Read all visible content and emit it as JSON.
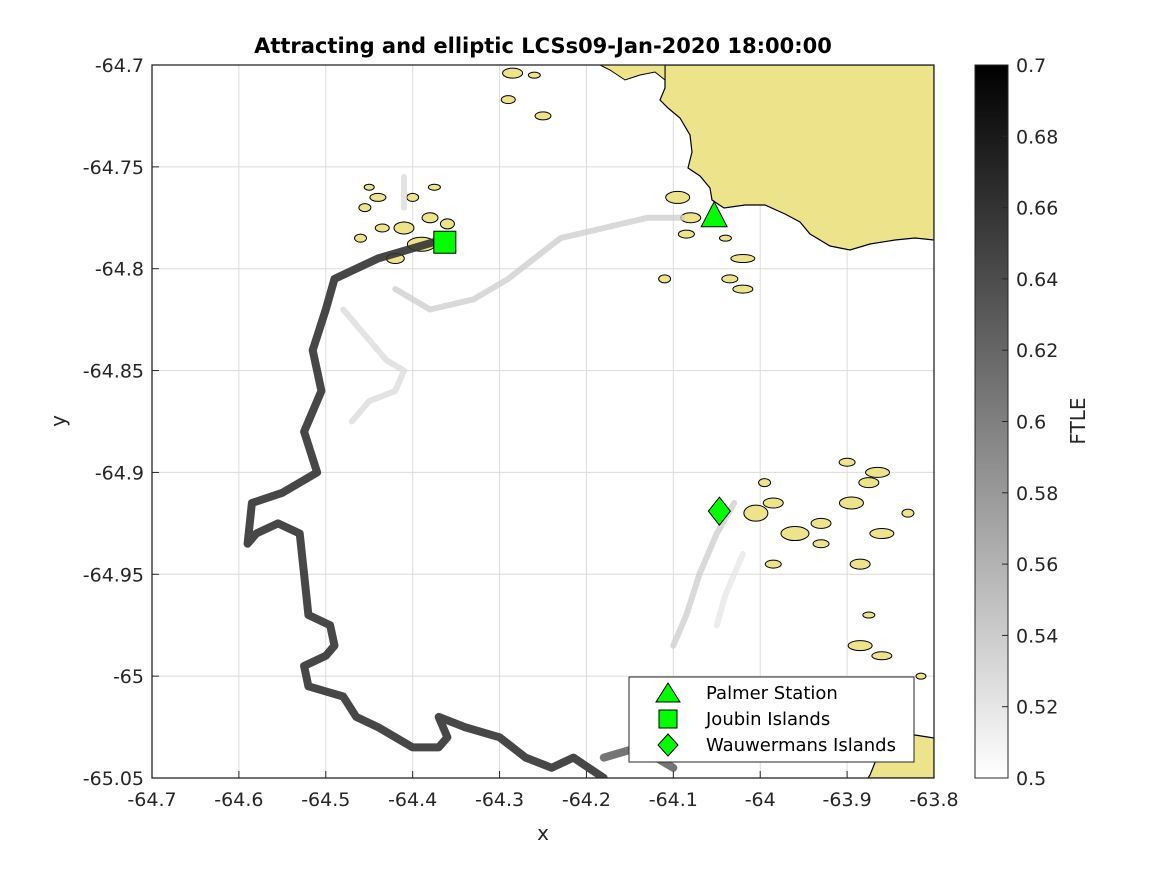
{
  "chart_data": {
    "type": "heatmap",
    "title": "Attracting and elliptic LCSs09-Jan-2020 18:00:00",
    "xlabel": "x",
    "ylabel": "y",
    "xlim": [
      -64.7,
      -63.8
    ],
    "ylim": [
      -65.05,
      -64.7
    ],
    "xticks": [
      "-64.7",
      "-64.6",
      "-64.5",
      "-64.4",
      "-64.3",
      "-64.2",
      "-64.1",
      "-64",
      "-63.9",
      "-63.8"
    ],
    "yticks": [
      "-64.7",
      "-64.75",
      "-64.8",
      "-64.85",
      "-64.9",
      "-64.95",
      "-65",
      "-65.05"
    ],
    "grid": true,
    "colorbar": {
      "label": "FTLE",
      "range": [
        0.5,
        0.7
      ],
      "ticks": [
        "0.5",
        "0.52",
        "0.54",
        "0.56",
        "0.58",
        "0.6",
        "0.62",
        "0.64",
        "0.66",
        "0.68",
        "0.7"
      ],
      "colormap": "white-to-black"
    },
    "legend": {
      "location": "bottom-right",
      "entries": [
        {
          "label": "Palmer Station",
          "marker": "triangle",
          "x": -64.053,
          "y": -64.774
        },
        {
          "label": "Joubin Islands",
          "marker": "square",
          "x": -64.363,
          "y": -64.787
        },
        {
          "label": "Wauwermans Islands",
          "marker": "diamond",
          "x": -64.047,
          "y": -64.919
        }
      ]
    },
    "marker_color": "#00ff00",
    "land_color": "#ede38b",
    "ridges": [
      {
        "name": "west-coast-ridge",
        "ftle": 0.66,
        "points": [
          [
            -64.36,
            -64.785
          ],
          [
            -64.44,
            -64.795
          ],
          [
            -64.49,
            -64.805
          ],
          [
            -64.5,
            -64.82
          ],
          [
            -64.515,
            -64.84
          ],
          [
            -64.505,
            -64.86
          ],
          [
            -64.525,
            -64.88
          ],
          [
            -64.51,
            -64.9
          ],
          [
            -64.55,
            -64.91
          ],
          [
            -64.585,
            -64.915
          ],
          [
            -64.59,
            -64.935
          ],
          [
            -64.58,
            -64.93
          ],
          [
            -64.555,
            -64.925
          ],
          [
            -64.53,
            -64.93
          ],
          [
            -64.525,
            -64.95
          ],
          [
            -64.52,
            -64.97
          ],
          [
            -64.495,
            -64.975
          ],
          [
            -64.49,
            -64.985
          ],
          [
            -64.5,
            -64.99
          ],
          [
            -64.525,
            -64.995
          ],
          [
            -64.52,
            -65.005
          ],
          [
            -64.48,
            -65.01
          ],
          [
            -64.465,
            -65.02
          ],
          [
            -64.44,
            -65.025
          ],
          [
            -64.4,
            -65.035
          ],
          [
            -64.37,
            -65.035
          ],
          [
            -64.36,
            -65.03
          ],
          [
            -64.37,
            -65.02
          ],
          [
            -64.34,
            -65.025
          ],
          [
            -64.3,
            -65.03
          ],
          [
            -64.27,
            -65.04
          ],
          [
            -64.24,
            -65.045
          ],
          [
            -64.215,
            -65.04
          ],
          [
            -64.18,
            -65.05
          ]
        ]
      },
      {
        "name": "north-faint-ridge",
        "ftle": 0.54,
        "points": [
          [
            -64.42,
            -64.81
          ],
          [
            -64.38,
            -64.82
          ],
          [
            -64.33,
            -64.815
          ],
          [
            -64.29,
            -64.805
          ],
          [
            -64.26,
            -64.795
          ],
          [
            -64.23,
            -64.785
          ],
          [
            -64.18,
            -64.78
          ],
          [
            -64.13,
            -64.775
          ],
          [
            -64.09,
            -64.775
          ]
        ]
      },
      {
        "name": "inner-faint-ridge",
        "ftle": 0.53,
        "points": [
          [
            -64.48,
            -64.82
          ],
          [
            -64.46,
            -64.83
          ],
          [
            -64.43,
            -64.845
          ],
          [
            -64.41,
            -64.85
          ],
          [
            -64.42,
            -64.86
          ],
          [
            -64.45,
            -64.865
          ],
          [
            -64.47,
            -64.875
          ]
        ]
      },
      {
        "name": "east-faint-ridge",
        "ftle": 0.54,
        "points": [
          [
            -64.03,
            -64.915
          ],
          [
            -64.05,
            -64.93
          ],
          [
            -64.07,
            -64.95
          ],
          [
            -64.085,
            -64.97
          ],
          [
            -64.1,
            -64.985
          ]
        ]
      },
      {
        "name": "east-faint-ridge-2",
        "ftle": 0.52,
        "points": [
          [
            -64.02,
            -64.94
          ],
          [
            -64.04,
            -64.96
          ],
          [
            -64.05,
            -64.975
          ]
        ]
      },
      {
        "name": "north-fragment",
        "ftle": 0.53,
        "points": [
          [
            -64.41,
            -64.755
          ],
          [
            -64.41,
            -64.77
          ]
        ]
      },
      {
        "name": "south-tail",
        "ftle": 0.62,
        "points": [
          [
            -64.18,
            -65.04
          ],
          [
            -64.14,
            -65.035
          ],
          [
            -64.12,
            -65.04
          ],
          [
            -64.1,
            -65.045
          ]
        ]
      }
    ]
  }
}
